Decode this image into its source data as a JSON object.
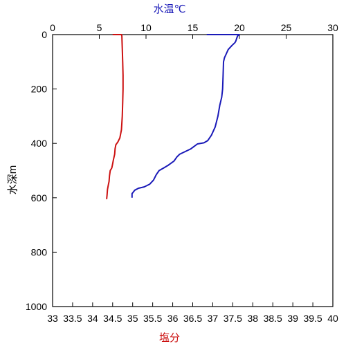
{
  "chart_data": {
    "type": "line",
    "y_axis": {
      "label": "水深m",
      "range": [
        0,
        1000
      ],
      "inverted": true,
      "ticks": [
        0,
        200,
        400,
        600,
        800,
        1000
      ]
    },
    "top_axis": {
      "label": "水温℃",
      "color": "#1a1ab8",
      "range": [
        0,
        30
      ],
      "ticks": [
        0,
        5,
        10,
        15,
        20,
        25,
        30
      ]
    },
    "bottom_axis": {
      "label": "塩分",
      "color": "#cc1111",
      "range": [
        33,
        40
      ],
      "ticks": [
        "33",
        "33.5",
        "34",
        "34.5",
        "35",
        "35.5",
        "36",
        "36.5",
        "37",
        "37.5",
        "38",
        "38.5",
        "39",
        "39.5",
        "40"
      ]
    },
    "grid": false,
    "series": [
      {
        "quantity": "salinity",
        "axis": "bottom",
        "color": "#cc1111",
        "points": [
          [
            34.5,
            0
          ],
          [
            34.72,
            0
          ],
          [
            34.73,
            5
          ],
          [
            34.74,
            50
          ],
          [
            34.75,
            100
          ],
          [
            34.76,
            150
          ],
          [
            34.76,
            200
          ],
          [
            34.75,
            250
          ],
          [
            34.74,
            300
          ],
          [
            34.72,
            350
          ],
          [
            34.68,
            380
          ],
          [
            34.63,
            395
          ],
          [
            34.58,
            405
          ],
          [
            34.56,
            420
          ],
          [
            34.55,
            440
          ],
          [
            34.52,
            460
          ],
          [
            34.5,
            475
          ],
          [
            34.48,
            490
          ],
          [
            34.44,
            500
          ],
          [
            34.42,
            520
          ],
          [
            34.41,
            540
          ],
          [
            34.39,
            555
          ],
          [
            34.37,
            570
          ],
          [
            34.36,
            590
          ],
          [
            34.35,
            605
          ]
        ]
      },
      {
        "quantity": "temperature",
        "axis": "top",
        "color": "#1a1ab8",
        "points": [
          [
            16.5,
            0
          ],
          [
            20.0,
            0
          ],
          [
            19.8,
            5
          ],
          [
            19.7,
            15
          ],
          [
            19.6,
            25
          ],
          [
            19.5,
            30
          ],
          [
            19.2,
            40
          ],
          [
            18.8,
            55
          ],
          [
            18.6,
            70
          ],
          [
            18.4,
            85
          ],
          [
            18.3,
            100
          ],
          [
            18.25,
            150
          ],
          [
            18.2,
            200
          ],
          [
            18.1,
            230
          ],
          [
            17.9,
            260
          ],
          [
            17.7,
            300
          ],
          [
            17.4,
            340
          ],
          [
            17.0,
            370
          ],
          [
            16.6,
            390
          ],
          [
            16.2,
            398
          ],
          [
            15.5,
            402
          ],
          [
            15.2,
            410
          ],
          [
            14.8,
            420
          ],
          [
            14.2,
            430
          ],
          [
            13.6,
            440
          ],
          [
            13.3,
            450
          ],
          [
            13.0,
            465
          ],
          [
            12.4,
            480
          ],
          [
            11.9,
            490
          ],
          [
            11.4,
            500
          ],
          [
            11.1,
            515
          ],
          [
            10.8,
            535
          ],
          [
            10.4,
            550
          ],
          [
            9.8,
            560
          ],
          [
            9.2,
            565
          ],
          [
            8.8,
            572
          ],
          [
            8.5,
            585
          ],
          [
            8.5,
            600
          ]
        ]
      }
    ]
  }
}
